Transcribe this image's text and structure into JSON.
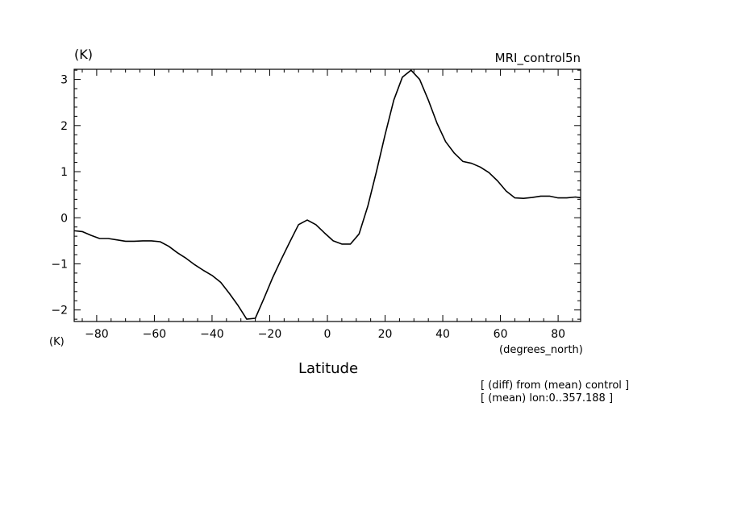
{
  "chart_data": {
    "type": "line",
    "title": "MRI_control5n",
    "ylabel_top": "(K)",
    "ylabel_bottom": "(K)",
    "xlabel": "Latitude",
    "xunits": "(degrees_north)",
    "notes": [
      "[ (diff) from (mean) control ]",
      "[ (mean) lon:0..357.188 ]"
    ],
    "xlim": [
      -87.8,
      87.8
    ],
    "ylim": [
      -2.25,
      3.22
    ],
    "xticks": [
      -80,
      -60,
      -40,
      -20,
      0,
      20,
      40,
      60,
      80
    ],
    "xtick_labels": [
      "−80",
      "−60",
      "−40",
      "−20",
      "0",
      "20",
      "40",
      "60",
      "80"
    ],
    "yticks": [
      -2,
      -1,
      0,
      1,
      2,
      3
    ],
    "ytick_labels": [
      "−2",
      "−1",
      "0",
      "1",
      "2",
      "3"
    ],
    "grid": false,
    "series": [
      {
        "x": [
          -88,
          -85,
          -82,
          -79,
          -76,
          -73,
          -70,
          -67,
          -64,
          -61,
          -58,
          -55,
          -52,
          -49,
          -46,
          -43,
          -40,
          -37,
          -34,
          -31,
          -28,
          -25,
          -22,
          -19,
          -16,
          -13,
          -10,
          -7,
          -4,
          -1,
          2,
          5,
          8,
          11,
          14,
          17,
          20,
          23,
          26,
          29,
          32,
          35,
          38,
          41,
          44,
          47,
          50,
          53,
          56,
          59,
          62,
          65,
          68,
          71,
          74,
          77,
          80,
          83,
          86,
          88
        ],
        "y": [
          -0.28,
          -0.3,
          -0.38,
          -0.45,
          -0.45,
          -0.48,
          -0.51,
          -0.51,
          -0.5,
          -0.5,
          -0.52,
          -0.62,
          -0.76,
          -0.88,
          -1.02,
          -1.14,
          -1.25,
          -1.4,
          -1.64,
          -1.9,
          -2.2,
          -2.18,
          -1.75,
          -1.3,
          -0.9,
          -0.52,
          -0.15,
          -0.05,
          -0.15,
          -0.33,
          -0.5,
          -0.57,
          -0.57,
          -0.35,
          0.25,
          1.0,
          1.8,
          2.55,
          3.05,
          3.2,
          3.0,
          2.55,
          2.05,
          1.65,
          1.4,
          1.22,
          1.18,
          1.1,
          0.98,
          0.8,
          0.58,
          0.43,
          0.42,
          0.44,
          0.47,
          0.47,
          0.43,
          0.43,
          0.45,
          0.43
        ]
      }
    ]
  }
}
